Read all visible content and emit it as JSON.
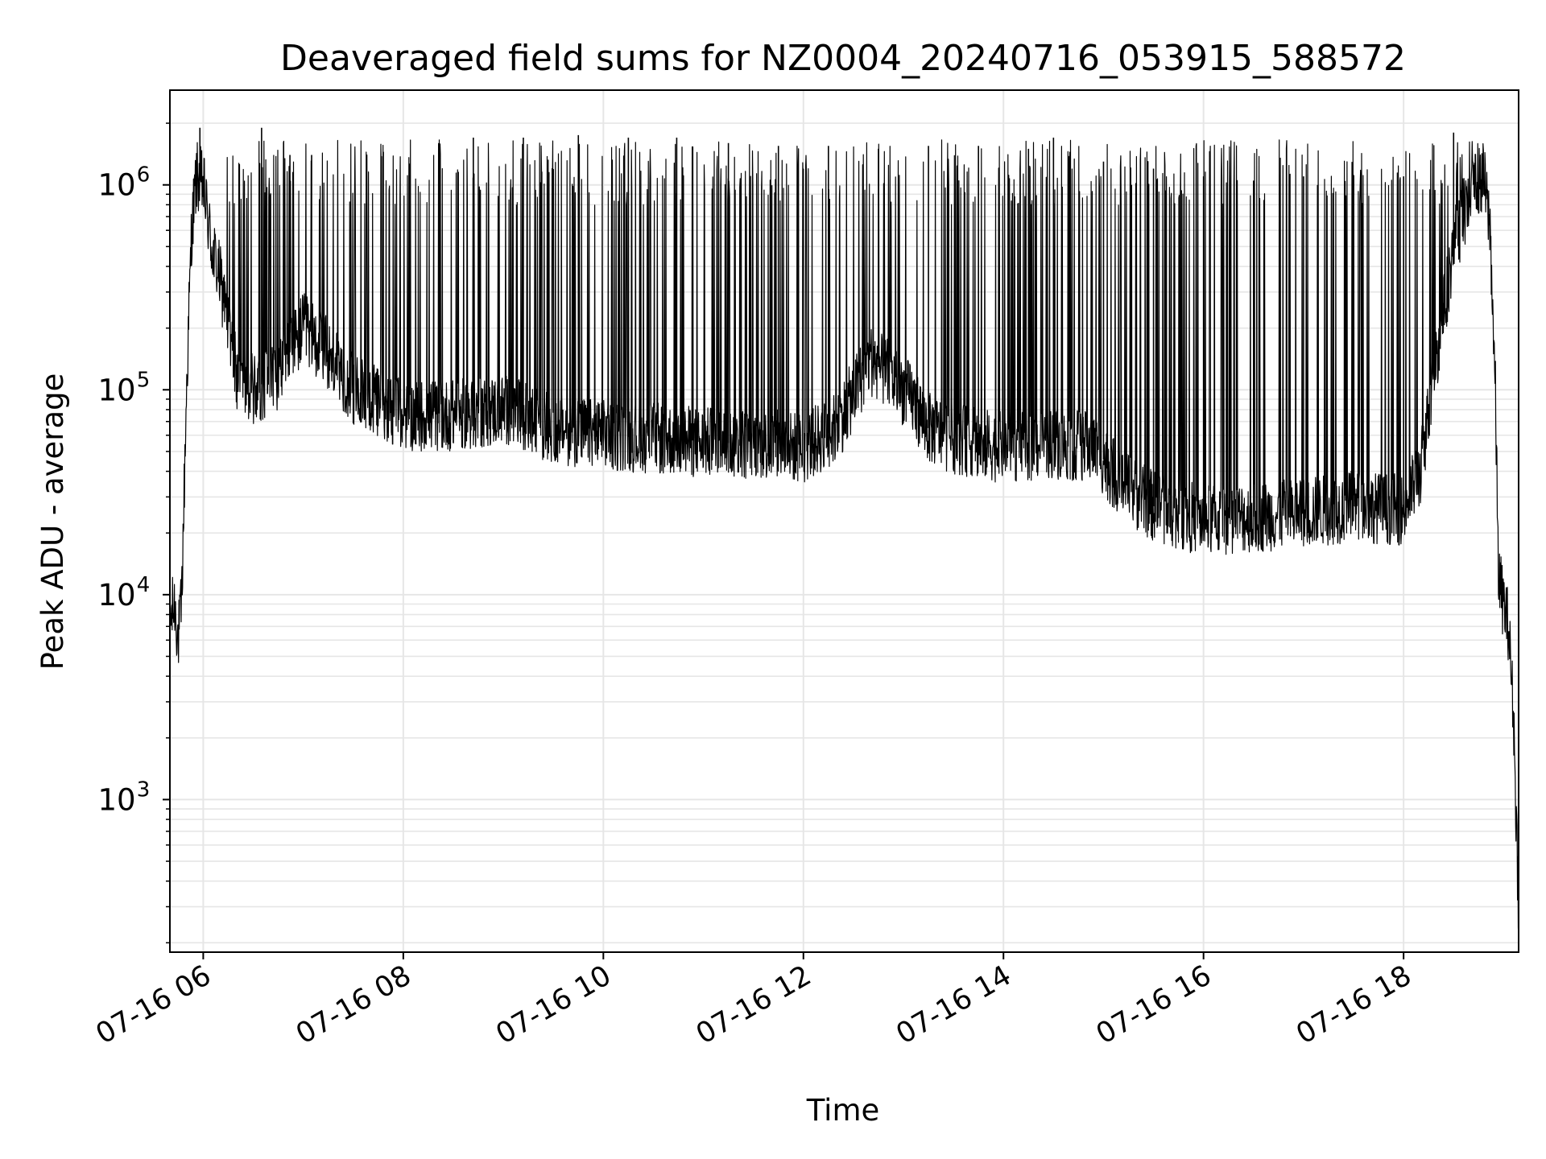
{
  "chart_data": {
    "type": "line",
    "title": "Deaveraged field sums for NZ0004_20240716_053915_588572",
    "xlabel": "Time",
    "ylabel": "Peak ADU - average",
    "yscale": "log",
    "ylim": [
      180,
      2900000
    ],
    "xlim": [
      "2024-07-16T05:40",
      "2024-07-16T19:09"
    ],
    "x_tick_labels": [
      "07-16 06",
      "07-16 08",
      "07-16 10",
      "07-16 12",
      "07-16 14",
      "07-16 16",
      "07-16 18"
    ],
    "y_tick_labels": [
      {
        "base": "10",
        "exp": "3"
      },
      {
        "base": "10",
        "exp": "4"
      },
      {
        "base": "10",
        "exp": "5"
      },
      {
        "base": "10",
        "exp": "6"
      }
    ],
    "grid": true,
    "line_color": "#000000",
    "series": [
      {
        "name": "",
        "x": [
          "2024-07-16T05:40",
          "2024-07-16T05:43",
          "2024-07-16T05:45",
          "2024-07-16T05:47",
          "2024-07-16T05:50",
          "2024-07-16T05:53",
          "2024-07-16T05:56",
          "2024-07-16T06:00",
          "2024-07-16T06:05",
          "2024-07-16T06:10",
          "2024-07-16T06:15",
          "2024-07-16T06:20",
          "2024-07-16T06:30",
          "2024-07-16T06:45",
          "2024-07-16T07:00",
          "2024-07-16T07:15",
          "2024-07-16T07:30",
          "2024-07-16T08:00",
          "2024-07-16T08:30",
          "2024-07-16T09:00",
          "2024-07-16T09:30",
          "2024-07-16T10:00",
          "2024-07-16T10:30",
          "2024-07-16T11:00",
          "2024-07-16T11:30",
          "2024-07-16T12:00",
          "2024-07-16T12:20",
          "2024-07-16T12:40",
          "2024-07-16T12:55",
          "2024-07-16T13:05",
          "2024-07-16T13:15",
          "2024-07-16T13:30",
          "2024-07-16T14:00",
          "2024-07-16T14:30",
          "2024-07-16T14:55",
          "2024-07-16T15:10",
          "2024-07-16T15:30",
          "2024-07-16T16:00",
          "2024-07-16T16:30",
          "2024-07-16T17:00",
          "2024-07-16T17:30",
          "2024-07-16T18:00",
          "2024-07-16T18:10",
          "2024-07-16T18:20",
          "2024-07-16T18:30",
          "2024-07-16T18:40",
          "2024-07-16T18:48",
          "2024-07-16T18:52",
          "2024-07-16T18:55",
          "2024-07-16T18:57",
          "2024-07-16T19:00",
          "2024-07-16T19:03",
          "2024-07-16T19:06",
          "2024-07-16T19:09"
        ],
        "y": [
          7500,
          9000,
          6000,
          9000,
          100000,
          600000,
          1100000,
          1000000,
          500000,
          350000,
          200000,
          120000,
          100000,
          120000,
          200000,
          150000,
          100000,
          75000,
          75000,
          80000,
          65000,
          60000,
          58000,
          55000,
          55000,
          52000,
          65000,
          140000,
          110000,
          90000,
          65000,
          58000,
          52000,
          55000,
          52000,
          35000,
          27000,
          23000,
          24000,
          25000,
          27000,
          26000,
          40000,
          150000,
          500000,
          900000,
          1100000,
          600000,
          100000,
          12000,
          9000,
          7000,
          2500,
          300
        ],
        "spikes": {
          "x": [
            "2024-07-16T05:58",
            "2024-07-16T06:35",
            "2024-07-16T06:52",
            "2024-07-16T07:05",
            "2024-07-16T07:48",
            "2024-07-16T08:42",
            "2024-07-16T09:12",
            "2024-07-16T09:45",
            "2024-07-16T10:15",
            "2024-07-16T10:44",
            "2024-07-16T11:15",
            "2024-07-16T11:45",
            "2024-07-16T12:15",
            "2024-07-16T12:45",
            "2024-07-16T13:15",
            "2024-07-16T13:45",
            "2024-07-16T14:15",
            "2024-07-16T14:30",
            "2024-07-16T15:00",
            "2024-07-16T15:30",
            "2024-07-16T16:00",
            "2024-07-16T16:30",
            "2024-07-16T17:00",
            "2024-07-16T17:30",
            "2024-07-16T18:00",
            "2024-07-16T18:30"
          ],
          "y": [
            1900000,
            1900000,
            1400000,
            1400000,
            1450000,
            1700000,
            1700000,
            1750000,
            1700000,
            1700000,
            1600000,
            1550000,
            1550000,
            1500000,
            1550000,
            1550000,
            1500000,
            1700000,
            1300000,
            1200000,
            1100000,
            1050000,
            1100000,
            1100000,
            1100000,
            1800000
          ]
        }
      }
    ]
  }
}
